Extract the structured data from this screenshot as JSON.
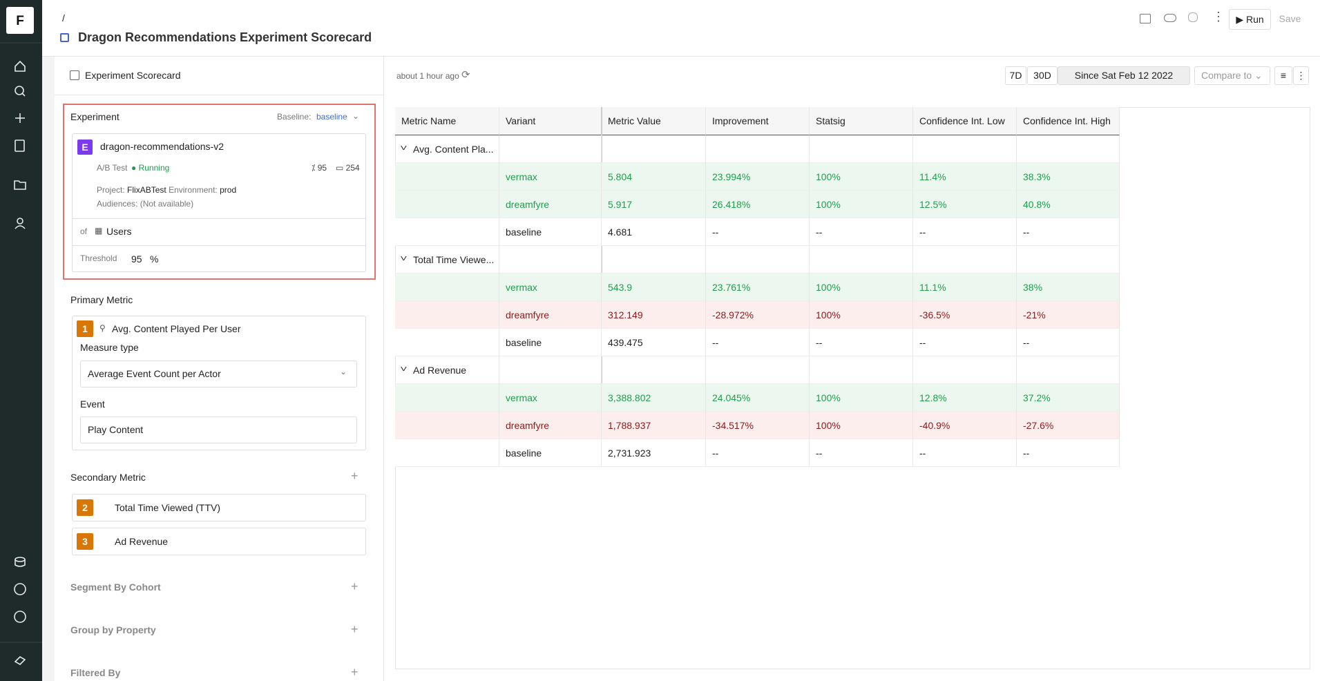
{
  "header": {
    "breadcrumb": "/",
    "title": "Dragon Recommendations Experiment Scorecard",
    "run": "Run",
    "save": "Save"
  },
  "left": {
    "tab": "Experiment Scorecard",
    "experiment": {
      "label": "Experiment",
      "baseline_label": "Baseline:",
      "baseline": "baseline",
      "badge": "E",
      "name": "dragon-recommendations-v2",
      "type": "A/B Test",
      "status": "Running",
      "stat1": "95",
      "stat2": "254",
      "project_label": "Project:",
      "project": "FlixABTest",
      "env_label": "Environment:",
      "env": "prod",
      "audiences": "Audiences: (Not available)",
      "of": "of",
      "unit": "Users",
      "threshold_label": "Threshold",
      "threshold": "95",
      "threshold_unit": "%"
    },
    "primary": {
      "title": "Primary Metric",
      "badge": "1",
      "name": "Avg. Content Played Per User",
      "measure_label": "Measure type",
      "measure": "Average Event Count per Actor",
      "event_label": "Event",
      "event": "Play Content"
    },
    "secondary": {
      "title": "Secondary Metric",
      "items": [
        {
          "badge": "2",
          "name": "Total Time Viewed (TTV)"
        },
        {
          "badge": "3",
          "name": "Ad Revenue"
        }
      ]
    },
    "sections": [
      "Segment By Cohort",
      "Group by Property",
      "Filtered By"
    ]
  },
  "right": {
    "updated": "about 1 hour ago",
    "ranges": [
      "7D",
      "30D",
      "Since Sat Feb 12 2022"
    ],
    "compare": "Compare to"
  },
  "table": {
    "columns": [
      "Metric Name",
      "Variant",
      "Metric Value",
      "Improvement",
      "Statsig",
      "Confidence Int. Low",
      "Confidence Int. High"
    ],
    "rows": [
      {
        "group": "Avg. Content Pla..."
      },
      {
        "tone": "good",
        "cells": [
          "vermax",
          "5.804",
          "23.994%",
          "100%",
          "11.4%",
          "38.3%"
        ]
      },
      {
        "tone": "good",
        "cells": [
          "dreamfyre",
          "5.917",
          "26.418%",
          "100%",
          "12.5%",
          "40.8%"
        ]
      },
      {
        "cells": [
          "baseline",
          "4.681",
          "--",
          "--",
          "--",
          "--"
        ]
      },
      {
        "group": "Total Time Viewe..."
      },
      {
        "tone": "good",
        "cells": [
          "vermax",
          "543.9",
          "23.761%",
          "100%",
          "11.1%",
          "38%"
        ]
      },
      {
        "tone": "bad",
        "cells": [
          "dreamfyre",
          "312.149",
          "-28.972%",
          "100%",
          "-36.5%",
          "-21%"
        ]
      },
      {
        "cells": [
          "baseline",
          "439.475",
          "--",
          "--",
          "--",
          "--"
        ]
      },
      {
        "group": "Ad Revenue"
      },
      {
        "tone": "good",
        "cells": [
          "vermax",
          "3,388.802",
          "24.045%",
          "100%",
          "12.8%",
          "37.2%"
        ]
      },
      {
        "tone": "bad",
        "cells": [
          "dreamfyre",
          "1,788.937",
          "-34.517%",
          "100%",
          "-40.9%",
          "-27.6%"
        ]
      },
      {
        "cells": [
          "baseline",
          "2,731.923",
          "--",
          "--",
          "--",
          "--"
        ]
      }
    ]
  }
}
